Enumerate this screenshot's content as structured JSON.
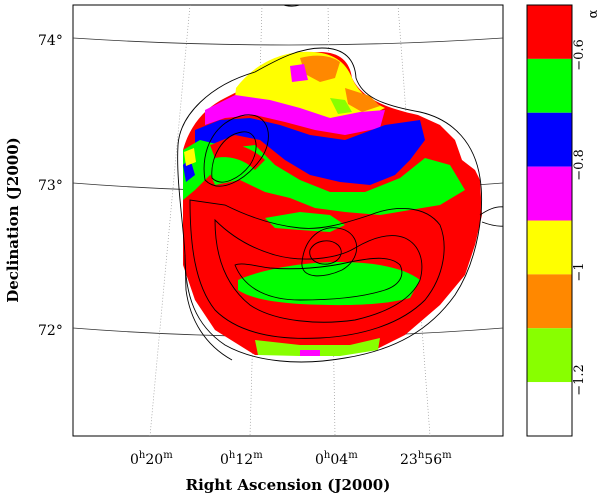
{
  "figure": {
    "xlabel": "Right Ascension (J2000)",
    "ylabel": "Declination (J2000)",
    "colorbar_label": "α",
    "colorbar_ticks": [
      "−0.6",
      "−0.8",
      "−1",
      "−1.2"
    ],
    "colorbar_bins": [
      {
        "color": "#ff0000"
      },
      {
        "color": "#00ff00"
      },
      {
        "color": "#0000ff"
      },
      {
        "color": "#ff00ff"
      },
      {
        "color": "#ffff00"
      },
      {
        "color": "#ff8800"
      },
      {
        "color": "#88ff00"
      },
      {
        "color": "#ffffff"
      }
    ],
    "dec_ticks": [
      {
        "deg": "74",
        "sym": "°"
      },
      {
        "deg": "73",
        "sym": "°"
      },
      {
        "deg": "72",
        "sym": "°"
      }
    ],
    "ra_ticks": [
      {
        "h": "0",
        "m": "20"
      },
      {
        "h": "0",
        "m": "12"
      },
      {
        "h": "0",
        "m": "04"
      },
      {
        "h": "23",
        "m": "56"
      }
    ]
  }
}
